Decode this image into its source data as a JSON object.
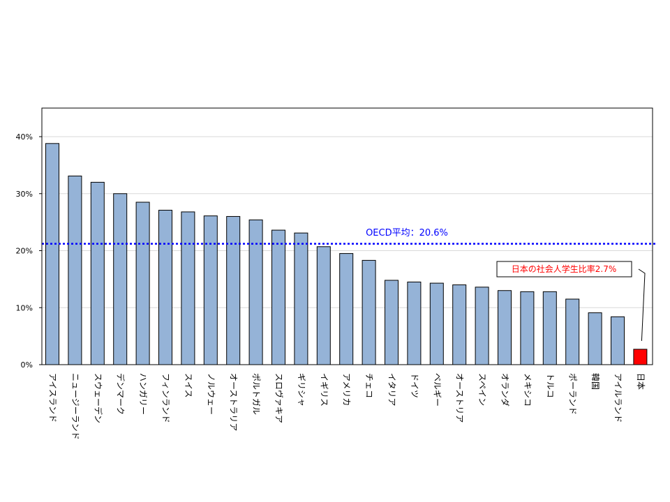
{
  "chart_data": {
    "type": "bar",
    "title": "",
    "xlabel": "",
    "ylabel": "",
    "ylim": [
      0,
      45
    ],
    "yticks": [
      0,
      10,
      20,
      30,
      40
    ],
    "ytick_labels": [
      "0%",
      "10%",
      "20%",
      "30%",
      "40%"
    ],
    "grid": "horizontal",
    "categories": [
      "アイスランド",
      "ニュージーランド",
      "スウェーデン",
      "デンマーク",
      "ハンガリー",
      "フィンランド",
      "スイス",
      "ノルウェー",
      "オーストラリア",
      "ポルトガル",
      "スロヴァキア",
      "ギリシャ",
      "イギリス",
      "アメリカ",
      "チェコ",
      "イタリア",
      "ドイツ",
      "ベルギー",
      "オーストリア",
      "スペイン",
      "オランダ",
      "メキシコ",
      "トルコ",
      "ポーランド",
      "韓国",
      "アイルランド",
      "日本"
    ],
    "values": [
      38.8,
      33.1,
      32.0,
      30.0,
      28.5,
      27.1,
      26.8,
      26.1,
      26.0,
      25.4,
      23.6,
      23.1,
      20.7,
      19.5,
      18.3,
      14.8,
      14.5,
      14.3,
      14.0,
      13.6,
      13.0,
      12.8,
      12.8,
      11.5,
      9.1,
      8.4,
      2.7
    ],
    "bar_color": "#95b3d7",
    "highlight_index": 26,
    "highlight_color": "#ff0000",
    "reference_line": {
      "value": 20.6,
      "label": "OECD平均：20.6%",
      "color": "#0000ff"
    },
    "annotation": {
      "text": "日本の社会人学生比率2.7%",
      "color": "#ff0000"
    }
  }
}
